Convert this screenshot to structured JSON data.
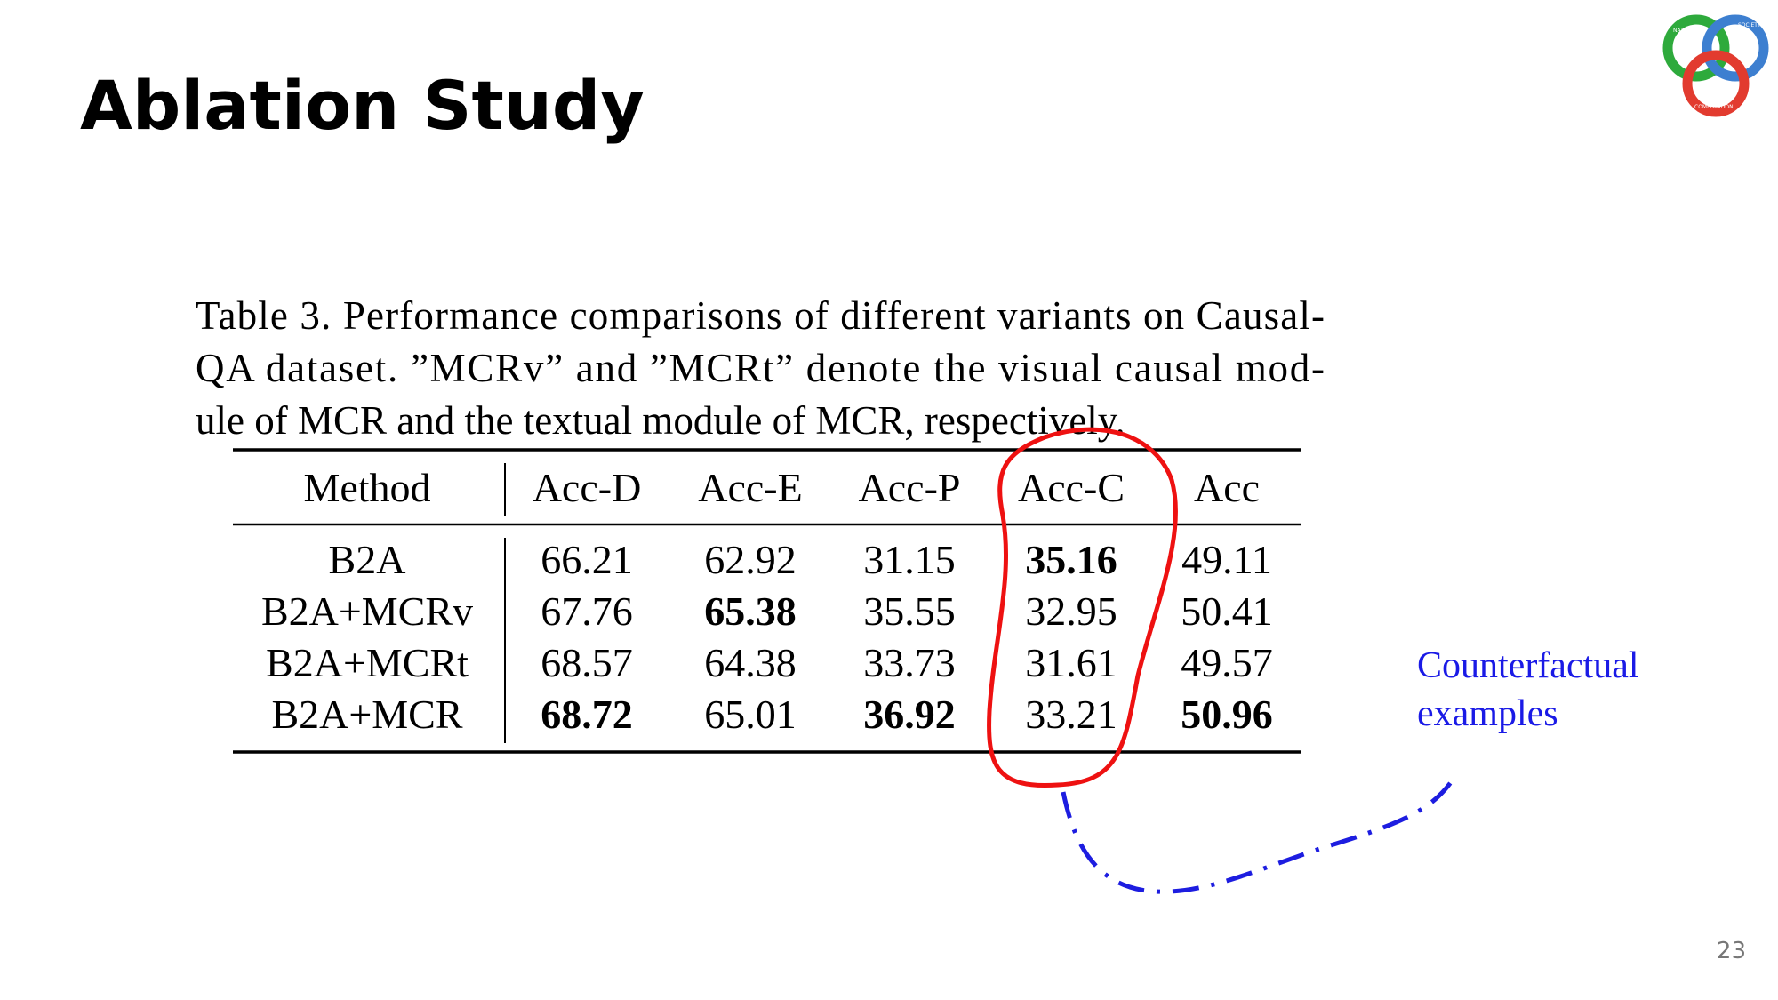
{
  "header": {
    "title": "Ablation Study"
  },
  "logo": {
    "labels": [
      "NATURE",
      "SOCIETY",
      "COMPUTATION"
    ]
  },
  "caption": {
    "lines": [
      "Table 3. Performance comparisons of different variants on Causal-",
      "QA dataset. ”MCRv” and ”MCRt” denote the visual causal mod-",
      "ule of MCR and the textual module of MCR, respectively."
    ]
  },
  "table": {
    "columns": [
      "Method",
      "Acc-D",
      "Acc-E",
      "Acc-P",
      "Acc-C",
      "Acc"
    ],
    "rows": [
      [
        "B2A",
        "66.21",
        "62.92",
        "31.15",
        "35.16",
        "49.11"
      ],
      [
        "B2A+MCRv",
        "67.76",
        "65.38",
        "35.55",
        "32.95",
        "50.41"
      ],
      [
        "B2A+MCRt",
        "68.57",
        "64.38",
        "33.73",
        "31.61",
        "49.57"
      ],
      [
        "B2A+MCR",
        "68.72",
        "65.01",
        "36.92",
        "33.21",
        "50.96"
      ]
    ]
  },
  "annotation": {
    "lines": [
      "Counterfactual",
      "examples"
    ]
  },
  "footer": {
    "page": "23"
  }
}
